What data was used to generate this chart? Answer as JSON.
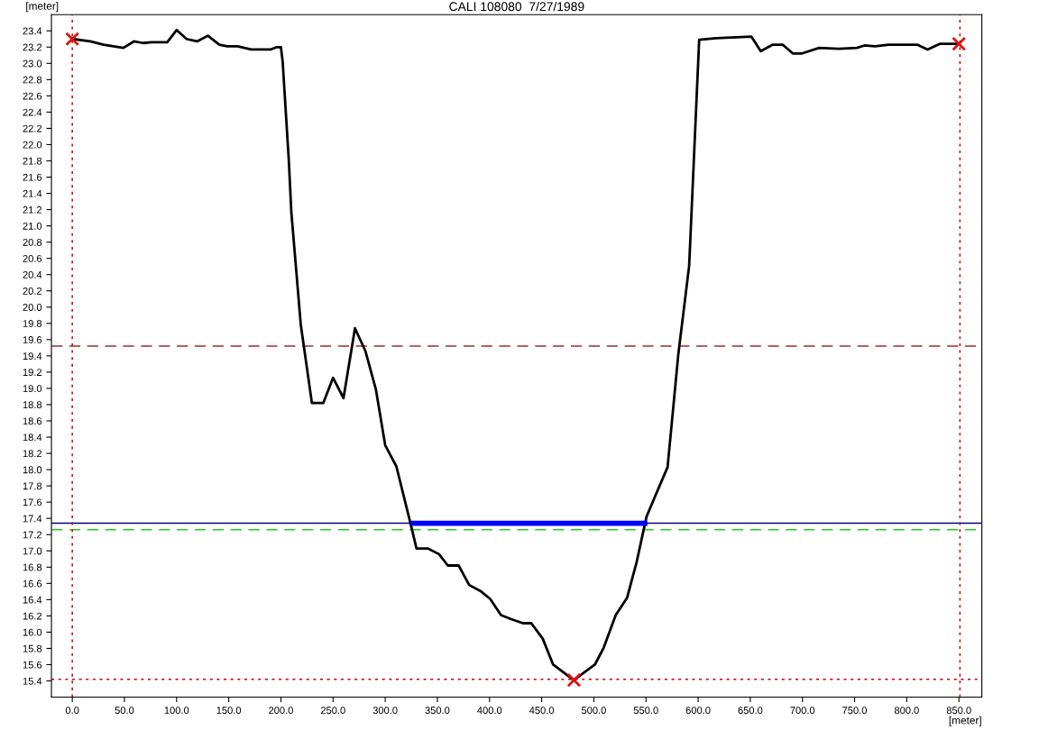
{
  "chart_data": {
    "type": "line",
    "title": "CALI 108080  7/27/1989",
    "xlabel": "[meter]",
    "ylabel": "[meter]",
    "series": [
      {
        "color": "#000000",
        "x": [
          0,
          17.3,
          30,
          49,
          59,
          68,
          76,
          91,
          100,
          109.5,
          119.6,
          130,
          141,
          148.5,
          158.5,
          171.5,
          190,
          196,
          200,
          201.7,
          207.5,
          210,
          219,
          229.7,
          240.6,
          250,
          260,
          271,
          281,
          291,
          300,
          310.7,
          324,
          330,
          340.7,
          351.6,
          360,
          370.4,
          380.5,
          392,
          400.6,
          411,
          420.8,
          432,
          440,
          451,
          461,
          480.8,
          501,
          509.5,
          521,
          531.8,
          541,
          550.5,
          559,
          570.7,
          581,
          591.4,
          601,
          617,
          651,
          660,
          671.6,
          681,
          691,
          699,
          716,
          735,
          752,
          759.5,
          769.6,
          782.5,
          810,
          820,
          831.5,
          850
        ],
        "values": [
          23.3,
          23.27,
          23.23,
          23.19,
          23.27,
          23.25,
          23.26,
          23.26,
          23.41,
          23.3,
          23.27,
          23.34,
          23.23,
          23.21,
          23.21,
          23.17,
          23.17,
          23.2,
          23.2,
          23.02,
          21.82,
          21.17,
          19.79,
          18.82,
          18.82,
          19.13,
          18.88,
          19.74,
          19.46,
          18.99,
          18.3,
          18.04,
          17.35,
          17.03,
          17.03,
          16.96,
          16.82,
          16.82,
          16.58,
          16.5,
          16.41,
          16.21,
          16.16,
          16.11,
          16.11,
          15.92,
          15.6,
          15.41,
          15.6,
          15.81,
          16.21,
          16.42,
          16.86,
          17.42,
          17.68,
          18.03,
          19.42,
          20.51,
          23.29,
          23.31,
          23.33,
          23.15,
          23.23,
          23.23,
          23.12,
          23.12,
          23.19,
          23.18,
          23.19,
          23.22,
          23.21,
          23.23,
          23.23,
          23.17,
          23.24,
          23.24
        ]
      },
      {
        "type": "line",
        "color": "#0000ff",
        "x": [
          327,
          549
        ],
        "values": [
          17.34,
          17.34
        ]
      },
      {
        "type": "scatter",
        "color": "#e01010",
        "marker": "cross",
        "x": [
          0,
          481,
          850
        ],
        "values": [
          23.3,
          15.41,
          23.24
        ]
      }
    ],
    "ref_lines": [
      {
        "axis": "y",
        "value": 19.52,
        "color": "#a52a2a",
        "line_style": "dashed"
      },
      {
        "axis": "y",
        "value": 17.34,
        "color": "#000080",
        "line_style": "solid"
      },
      {
        "axis": "y",
        "value": 17.26,
        "color": "#22cc22",
        "line_style": "dashed"
      },
      {
        "axis": "y",
        "value": 15.42,
        "color": "#cc0000",
        "line_style": "dotted"
      },
      {
        "axis": "x",
        "value": 0,
        "color": "#cc0000",
        "line_style": "dotted"
      },
      {
        "axis": "x",
        "value": 851,
        "color": "#cc0000",
        "line_style": "dotted"
      }
    ],
    "xlim": [
      -20,
      872
    ],
    "ylim": [
      15.2,
      23.6
    ],
    "xticks": [
      {
        "value": 0,
        "label": "0.0"
      },
      {
        "value": 50,
        "label": "50.0"
      },
      {
        "value": 100,
        "label": "100.0"
      },
      {
        "value": 150,
        "label": "150.0"
      },
      {
        "value": 200,
        "label": "200.0"
      },
      {
        "value": 250,
        "label": "250.0"
      },
      {
        "value": 300,
        "label": "300.0"
      },
      {
        "value": 350,
        "label": "350.0"
      },
      {
        "value": 400,
        "label": "400.0"
      },
      {
        "value": 450,
        "label": "450.0"
      },
      {
        "value": 500,
        "label": "500.0"
      },
      {
        "value": 550,
        "label": "550.0"
      },
      {
        "value": 600,
        "label": "600.0"
      },
      {
        "value": 650,
        "label": "650.0"
      },
      {
        "value": 700,
        "label": "700.0"
      },
      {
        "value": 750,
        "label": "750.0"
      },
      {
        "value": 800,
        "label": "800.0"
      },
      {
        "value": 850,
        "label": "850.0"
      }
    ],
    "yticks": [
      15.4,
      15.6,
      15.8,
      {
        "value": 16,
        "label": "16.0"
      },
      16.2,
      16.4,
      16.6,
      16.8,
      {
        "value": 17,
        "label": "17.0"
      },
      17.2,
      17.4,
      17.6,
      17.8,
      {
        "value": 18,
        "label": "18.0"
      },
      18.2,
      18.4,
      18.6,
      18.8,
      {
        "value": 19,
        "label": "19.0"
      },
      19.2,
      19.4,
      19.6,
      19.8,
      {
        "value": 20,
        "label": "20.0"
      },
      20.2,
      20.4,
      20.6,
      20.8,
      {
        "value": 21,
        "label": "21.0"
      },
      21.2,
      21.4,
      21.6,
      21.8,
      {
        "value": 22,
        "label": "22.0"
      },
      22.2,
      22.4,
      22.6,
      22.8,
      {
        "value": 23,
        "label": "23.0"
      },
      23.2,
      23.4
    ],
    "grid": false,
    "legend": false
  }
}
